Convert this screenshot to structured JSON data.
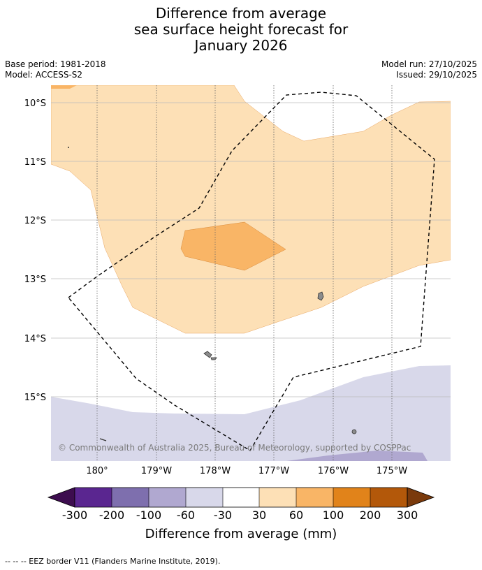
{
  "title": {
    "line1": "Difference from average",
    "line2": "sea surface height forecast for",
    "line3": "January 2026"
  },
  "meta": {
    "base_period": "Base period: 1981-2018",
    "model": "Model: ACCESS-S2",
    "model_run": "Model run: 27/10/2025",
    "issued": "Issued: 29/10/2025"
  },
  "map": {
    "lat_labels": [
      "10°S",
      "11°S",
      "12°S",
      "13°S",
      "14°S",
      "15°S"
    ],
    "lon_labels": [
      "180°",
      "179°W",
      "178°W",
      "177°W",
      "176°W",
      "175°W"
    ],
    "copyright": "© Commonwealth of Australia 2025, Bureau of Meteorology, supported by COSPPac"
  },
  "colorbar": {
    "title": "Difference from average (mm)",
    "ticks": [
      "-300",
      "-200",
      "-100",
      "-60",
      "-30",
      "30",
      "60",
      "100",
      "200",
      "300"
    ],
    "colors": {
      "below_min": "#3d0d4f",
      "c1": "#5a2690",
      "c2": "#7e6fae",
      "c3": "#b0a8d0",
      "c4": "#d8d8ea",
      "c5": "#ffffff",
      "c6": "#fde0b6",
      "c7": "#f9b566",
      "c8": "#e1831a",
      "c9": "#b3580a",
      "above_max": "#7a3a0c"
    }
  },
  "footer": {
    "legend": "--  --  -- EEZ border V11 (Flanders Marine Institute, 2019)."
  }
}
